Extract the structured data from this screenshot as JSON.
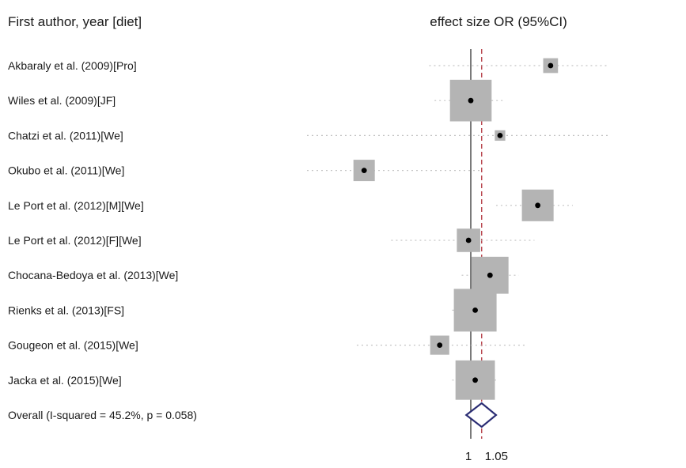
{
  "chart_data": {
    "type": "forest",
    "header_left": "First author, year [diet]",
    "header_right": "effect size OR (95%CI)",
    "null_value": 1,
    "pooled_estimate": 1.05,
    "studies": [
      {
        "label": "Akbaraly et al. (2009)[Pro]",
        "or": 1.43,
        "ci": [
          0.83,
          2.2
        ],
        "weight": 0.12
      },
      {
        "label": "Wiles et al. (2009)[JF]",
        "or": 1.0,
        "ci": [
          0.85,
          1.16
        ],
        "weight": 0.95
      },
      {
        "label": "Chatzi et al. (2011)[We]",
        "or": 1.14,
        "ci": [
          0.35,
          2.2
        ],
        "weight": 0.06
      },
      {
        "label": "Okubo et al. (2011)[We]",
        "or": 0.62,
        "ci": [
          0.33,
          1.05
        ],
        "weight": 0.25
      },
      {
        "label": "Le Port et al. (2012)[M][We]",
        "or": 1.35,
        "ci": [
          1.12,
          1.58
        ],
        "weight": 0.55
      },
      {
        "label": "Le Port et al. (2012)[F][We]",
        "or": 0.99,
        "ci": [
          0.7,
          1.33
        ],
        "weight": 0.3
      },
      {
        "label": "Chocana-Bedoya et al. (2013)[We]",
        "or": 1.09,
        "ci": [
          0.96,
          1.24
        ],
        "weight": 0.75
      },
      {
        "label": "Rienks et al. (2013)[FS]",
        "or": 1.02,
        "ci": [
          0.92,
          1.13
        ],
        "weight": 1.0
      },
      {
        "label": "Gougeon et al. (2015)[We]",
        "or": 0.87,
        "ci": [
          0.6,
          1.28
        ],
        "weight": 0.2
      },
      {
        "label": "Jacka et al. (2015)[We]",
        "or": 1.02,
        "ci": [
          0.92,
          1.12
        ],
        "weight": 0.85
      }
    ],
    "overall": {
      "label": "Overall  (I-squared = 45.2%, p = 0.058)",
      "or": 1.05,
      "ci": [
        0.98,
        1.12
      ]
    },
    "x_ticks": [
      {
        "value": 1,
        "label": "1"
      },
      {
        "value": 1.05,
        "label": "1.05"
      }
    ],
    "colors": {
      "box": "#b4b4b4",
      "point": "#000000",
      "ci_line": "#c4c4c4",
      "null_line": "#333333",
      "pooled_line": "#b0303a",
      "diamond": "#2b2d74"
    }
  }
}
